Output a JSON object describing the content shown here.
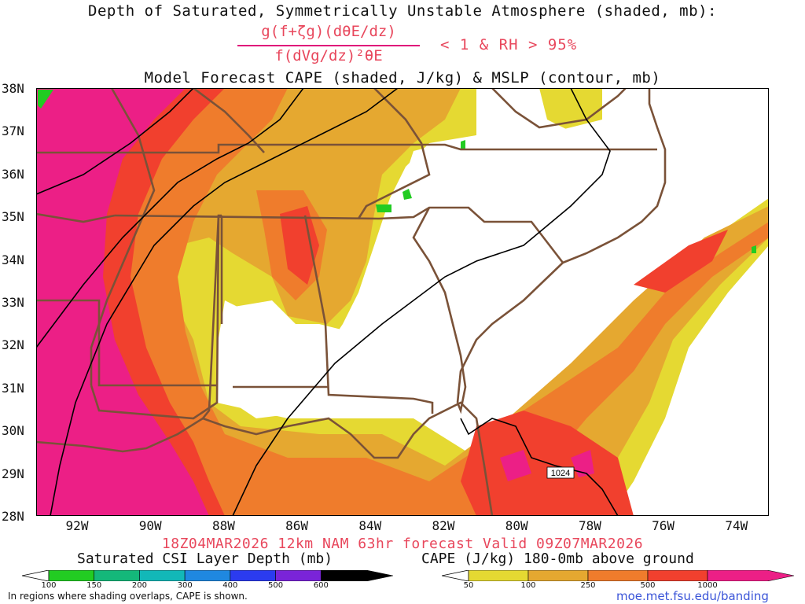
{
  "titles": {
    "line1": "Depth of Saturated, Symmetrically Unstable Atmosphere (shaded, mb):",
    "fraction_numerator": "g(f+ζg)(dθE/dz)",
    "fraction_denominator": "f(dVg/dz)²θE",
    "fraction_condition": "< 1 & RH > 95%",
    "line3": "Model Forecast CAPE (shaded, J/kg) & MSLP (contour, mb)",
    "valid": "18Z04MAR2026 12km NAM 63hr forecast Valid 09Z07MAR2026"
  },
  "map": {
    "lat_labels": [
      "38N",
      "37N",
      "36N",
      "35N",
      "34N",
      "33N",
      "32N",
      "31N",
      "30N",
      "29N",
      "28N"
    ],
    "lon_labels": [
      "92W",
      "90W",
      "88W",
      "86W",
      "84W",
      "82W",
      "80W",
      "78W",
      "76W",
      "74W"
    ],
    "isobar_label": "1024"
  },
  "colorbars": {
    "csi": {
      "title": "Saturated CSI Layer Depth (mb)",
      "labels": [
        "100",
        "150",
        "200",
        "300",
        "400",
        "500",
        "600"
      ],
      "colors": [
        "#22cc22",
        "#14b87a",
        "#12b8b8",
        "#1f88e0",
        "#2b3bef",
        "#7a24d8",
        "#000000"
      ]
    },
    "cape": {
      "title": "CAPE (J/kg) 180-0mb above ground",
      "labels": [
        "50",
        "100",
        "250",
        "500",
        "1000"
      ],
      "colors": [
        "#e5d932",
        "#e5a830",
        "#ef7c2c",
        "#f1402e",
        "#ec1f86"
      ]
    }
  },
  "footer": {
    "note": "In regions where shading overlaps, CAPE is shown.",
    "site": "moe.met.fsu.edu/banding"
  }
}
